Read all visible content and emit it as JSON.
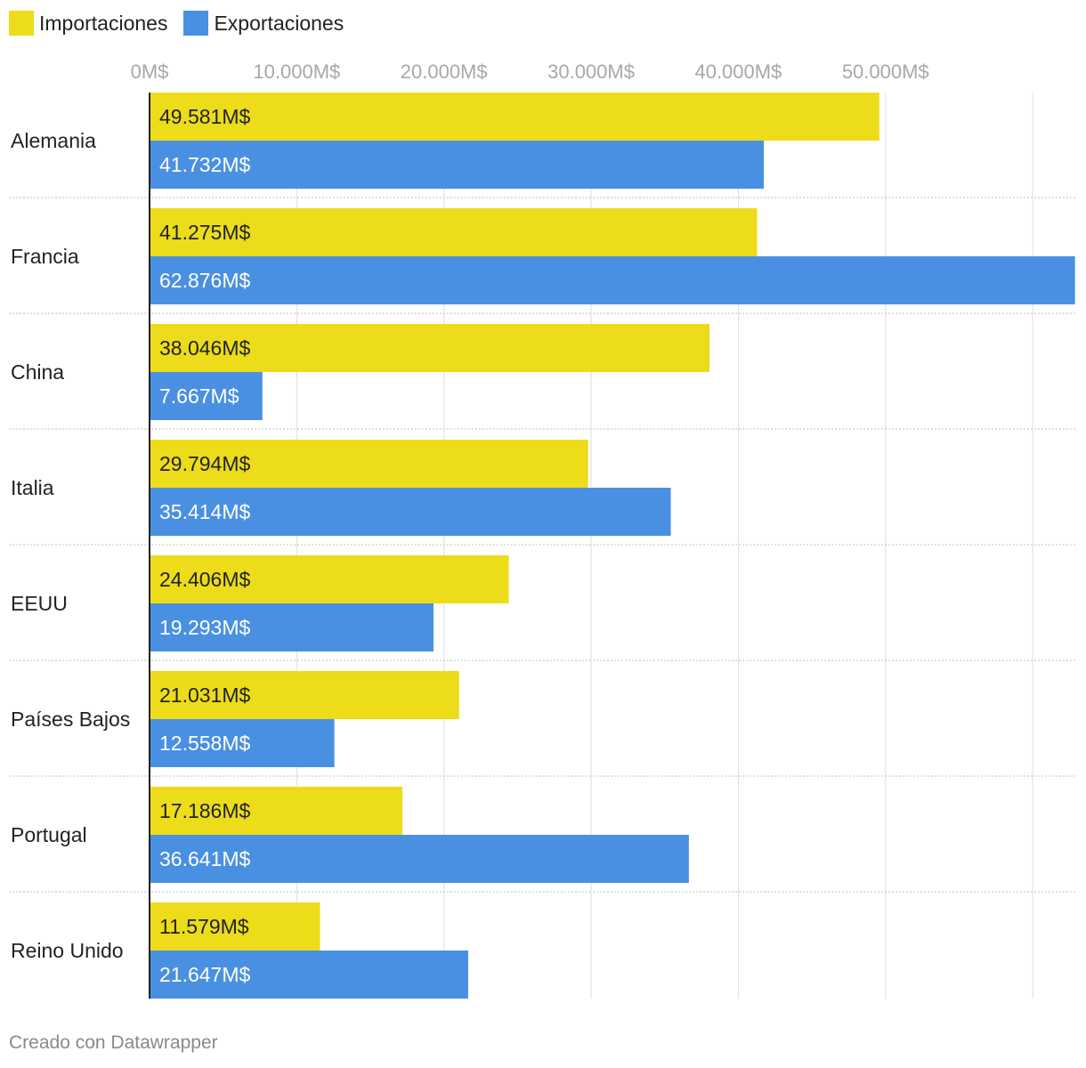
{
  "legend": {
    "imports_label": "Importaciones",
    "exports_label": "Exportaciones"
  },
  "colors": {
    "imports": "#ecdc19",
    "exports": "#4a90e2",
    "grid": "#dddddd",
    "separator": "#cccccc",
    "axis": "#222222",
    "tick_text": "#a8a8a8"
  },
  "footer": "Creado con Datawrapper",
  "chart_data": {
    "type": "bar",
    "orientation": "horizontal",
    "categories": [
      "Alemania",
      "Francia",
      "China",
      "Italia",
      "EEUU",
      "Países Bajos",
      "Portugal",
      "Reino Unido"
    ],
    "series": [
      {
        "name": "Importaciones",
        "values": [
          49581,
          41275,
          38046,
          29794,
          24406,
          21031,
          17186,
          11579
        ],
        "labels": [
          "49.581M$",
          "41.275M$",
          "38.046M$",
          "29.794M$",
          "24.406M$",
          "21.031M$",
          "17.186M$",
          "11.579M$"
        ]
      },
      {
        "name": "Exportaciones",
        "values": [
          41732,
          62876,
          7667,
          35414,
          19293,
          12558,
          36641,
          21647
        ],
        "labels": [
          "41.732M$",
          "62.876M$",
          "7.667M$",
          "35.414M$",
          "19.293M$",
          "12.558M$",
          "36.641M$",
          "21.647M$"
        ]
      }
    ],
    "x_ticks": [
      0,
      10000,
      20000,
      30000,
      40000,
      50000,
      60000
    ],
    "x_tick_labels": [
      "0M$",
      "10.000M$",
      "20.000M$",
      "30.000M$",
      "40.000M$",
      "50.000M$",
      ""
    ],
    "xlim": [
      0,
      62876
    ],
    "grid": true,
    "legend_position": "top-left"
  }
}
